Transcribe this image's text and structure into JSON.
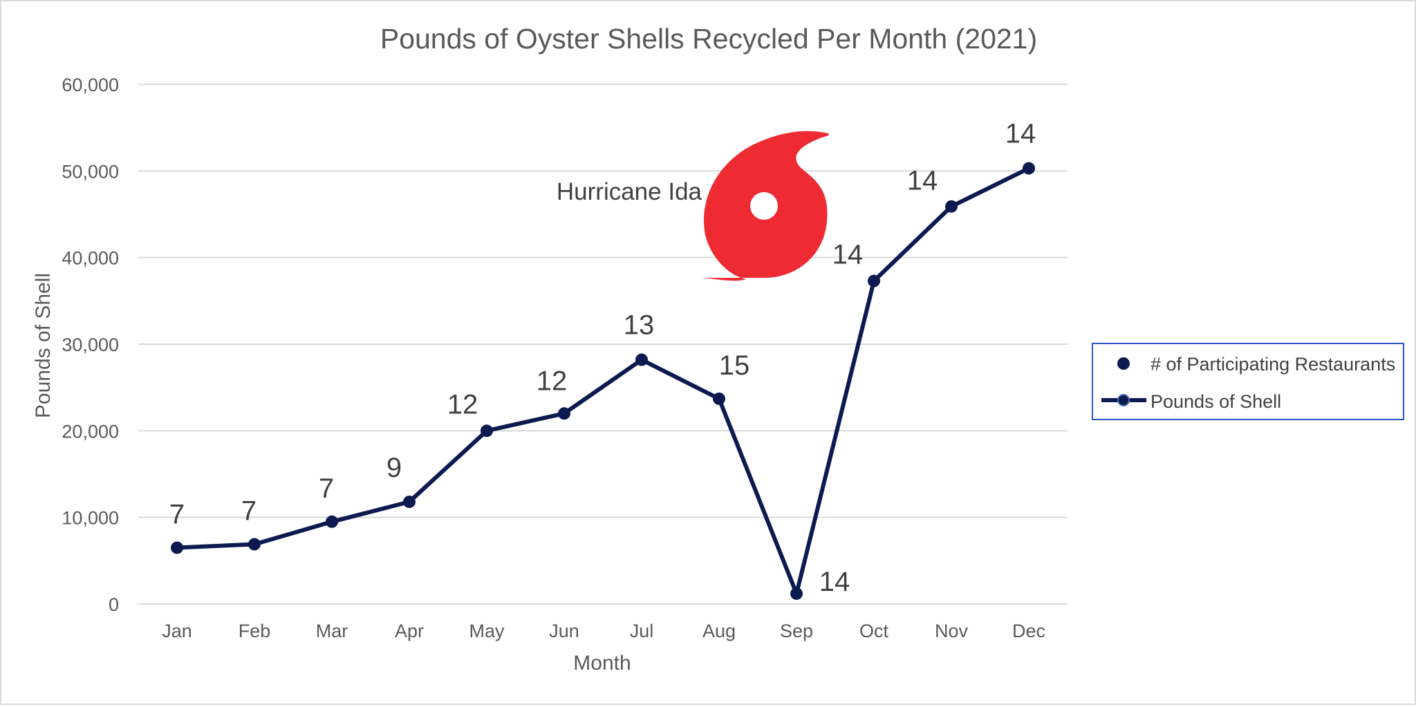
{
  "colors": {
    "series": "#0c1a4f",
    "grid": "#d9d9d9",
    "legend_border": "#2f55c7",
    "hurricane_icon": "#ee2a33"
  },
  "chart_data": {
    "type": "line",
    "title": "Pounds of Oyster Shells Recycled Per Month (2021)",
    "xlabel": "Month",
    "ylabel": "Pounds of Shell",
    "categories": [
      "Jan",
      "Feb",
      "Mar",
      "Apr",
      "May",
      "Jun",
      "Jul",
      "Aug",
      "Sep",
      "Oct",
      "Nov",
      "Dec"
    ],
    "ylim": [
      0,
      60000
    ],
    "yticks": [
      0,
      10000,
      20000,
      30000,
      40000,
      50000,
      60000
    ],
    "ytick_labels": [
      "0",
      "10,000",
      "20,000",
      "30,000",
      "40,000",
      "50,000",
      "60,000"
    ],
    "grid": true,
    "legend_position": "right",
    "series": [
      {
        "name": "Pounds of Shell",
        "values": [
          6500,
          6900,
          9500,
          11800,
          20000,
          22000,
          28200,
          23700,
          1200,
          37300,
          45900,
          50300
        ]
      },
      {
        "name": "# of Participating Restaurants",
        "values": [
          7,
          7,
          7,
          9,
          12,
          12,
          13,
          15,
          14,
          14,
          14,
          14
        ]
      }
    ],
    "annotations": [
      {
        "text": "Hurricane Ida",
        "icon": "hurricane-icon"
      }
    ]
  }
}
